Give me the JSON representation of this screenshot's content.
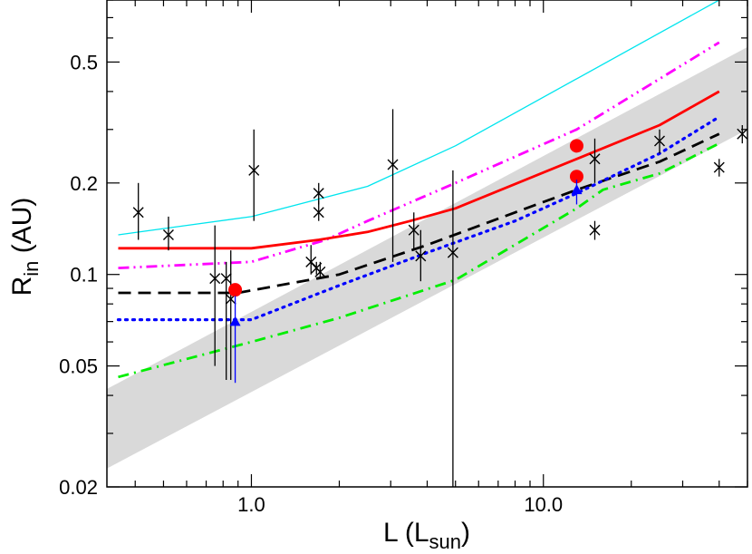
{
  "chart_data": {
    "type": "scatter",
    "title": "",
    "xlabel": {
      "main": "L (L",
      "sub": "sun",
      "close": ")"
    },
    "ylabel": {
      "main": "R",
      "sub": "in",
      "rest": " (AU)"
    },
    "x_scale": "log",
    "y_scale": "log",
    "xlim": [
      0.32,
      50
    ],
    "ylim": [
      0.02,
      0.8
    ],
    "x_ticks": [
      {
        "value": 1.0,
        "label": "1.0"
      },
      {
        "value": 10.0,
        "label": "10.0"
      }
    ],
    "y_ticks": [
      {
        "value": 0.02,
        "label": "0.02"
      },
      {
        "value": 0.05,
        "label": "0.05"
      },
      {
        "value": 0.1,
        "label": "0.1"
      },
      {
        "value": 0.2,
        "label": "0.2"
      },
      {
        "value": 0.5,
        "label": "0.5"
      }
    ],
    "grid": false,
    "legend": "none",
    "band": {
      "color": "#d9d9d9",
      "upper": [
        [
          0.32,
          0.042
        ],
        [
          50,
          0.56
        ]
      ],
      "lower": [
        [
          0.32,
          0.023
        ],
        [
          50,
          0.3
        ]
      ]
    },
    "series": [
      {
        "kind": "line",
        "style": "solid",
        "color": "#00e5ee",
        "width": 1.3,
        "x": [
          0.35,
          0.6,
          1.0,
          2.5,
          5.0,
          40.0
        ],
        "y": [
          0.135,
          0.145,
          0.155,
          0.195,
          0.265,
          0.8
        ]
      },
      {
        "kind": "line",
        "style": "dash-dot-dot",
        "color": "#ff00ff",
        "width": 2.8,
        "x": [
          0.35,
          1.0,
          1.8,
          2.5,
          5.0,
          13.0,
          40.0
        ],
        "y": [
          0.105,
          0.11,
          0.13,
          0.15,
          0.2,
          0.3,
          0.58
        ]
      },
      {
        "kind": "line",
        "style": "solid",
        "color": "#ff0000",
        "width": 2.8,
        "x": [
          0.35,
          1.0,
          1.7,
          2.5,
          3.5,
          5.0,
          13.0,
          25.0,
          40.0
        ],
        "y": [
          0.122,
          0.122,
          0.13,
          0.138,
          0.15,
          0.165,
          0.24,
          0.31,
          0.4
        ]
      },
      {
        "kind": "line",
        "style": "dash",
        "color": "#000000",
        "width": 2.8,
        "x": [
          0.35,
          0.9,
          2.0,
          4.0,
          8.0,
          13.0,
          25.0,
          40.0
        ],
        "y": [
          0.087,
          0.087,
          0.1,
          0.125,
          0.16,
          0.19,
          0.235,
          0.29
        ]
      },
      {
        "kind": "line",
        "style": "dot",
        "color": "#0000ff",
        "width": 3.2,
        "x": [
          0.35,
          1.0,
          2.0,
          4.0,
          8.0,
          13.0,
          25.0,
          40.0
        ],
        "y": [
          0.071,
          0.071,
          0.092,
          0.118,
          0.15,
          0.185,
          0.25,
          0.33
        ]
      },
      {
        "kind": "line",
        "style": "dash-dot",
        "color": "#00ee00",
        "width": 2.8,
        "x": [
          0.35,
          1.0,
          2.0,
          5.0,
          13.0,
          16.0,
          25.0,
          40.0
        ],
        "y": [
          0.046,
          0.06,
          0.072,
          0.096,
          0.165,
          0.19,
          0.215,
          0.27
        ]
      },
      {
        "kind": "errorbar",
        "marker": "x",
        "color": "#000000",
        "points": [
          [
            0.41,
            0.16,
            0.13,
            0.2
          ],
          [
            0.52,
            0.135,
            0.12,
            0.155
          ],
          [
            0.75,
            0.097,
            0.05,
            0.145
          ],
          [
            0.82,
            0.097,
            0.045,
            0.11
          ],
          [
            0.85,
            0.083,
            0.045,
            0.12
          ],
          [
            1.02,
            0.22,
            0.15,
            0.3
          ],
          [
            1.6,
            0.11,
            0.1,
            0.125
          ],
          [
            1.67,
            0.105,
            0.1,
            0.11
          ],
          [
            1.7,
            0.185,
            0.17,
            0.2
          ],
          [
            1.7,
            0.16,
            0.15,
            0.175
          ],
          [
            1.72,
            0.102,
            0.097,
            0.11
          ],
          [
            3.05,
            0.23,
            0.11,
            0.35
          ],
          [
            3.6,
            0.14,
            0.12,
            0.16
          ],
          [
            3.8,
            0.115,
            0.095,
            0.14
          ],
          [
            4.9,
            0.118,
            0.02,
            0.22
          ],
          [
            15.0,
            0.24,
            0.2,
            0.28
          ],
          [
            15.0,
            0.14,
            0.13,
            0.15
          ],
          [
            25.0,
            0.275,
            0.25,
            0.3
          ],
          [
            40.0,
            0.225,
            0.21,
            0.24
          ],
          [
            48.0,
            0.29,
            0.27,
            0.31
          ]
        ]
      },
      {
        "kind": "markers",
        "marker": "circle",
        "color": "#ff0000",
        "x": [
          0.88,
          13.0,
          13.0
        ],
        "y": [
          0.089,
          0.265,
          0.21
        ]
      },
      {
        "kind": "errorbar",
        "marker": "triangle",
        "color": "#0000ff",
        "points": [
          [
            0.88,
            0.07,
            0.044,
            0.085
          ],
          [
            13.0,
            0.19,
            0.17,
            0.205
          ]
        ]
      }
    ]
  }
}
